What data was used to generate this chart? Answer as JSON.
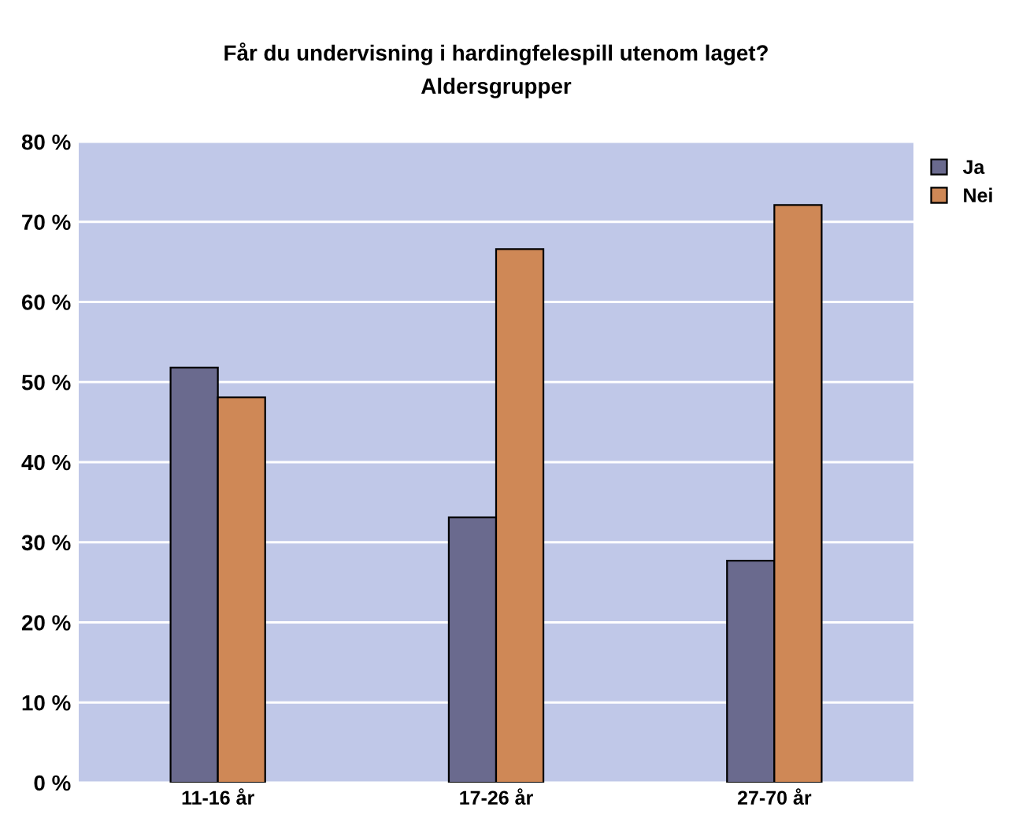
{
  "chart_data": {
    "type": "bar",
    "title": "Får du undervisning i hardingfelespill utenom laget?\nAldersgrupper",
    "categories": [
      "11-16 år",
      "17-26 år",
      "27-70 år"
    ],
    "series": [
      {
        "name": "Ja",
        "color": "#6a6a8e",
        "values": [
          51.8,
          33.1,
          27.7
        ]
      },
      {
        "name": "Nei",
        "color": "#cf8856",
        "values": [
          48.1,
          66.6,
          72.1
        ]
      }
    ],
    "ylim": [
      0,
      80
    ],
    "yticks": [
      {
        "value": 0,
        "label": "0 %"
      },
      {
        "value": 10,
        "label": "10 %"
      },
      {
        "value": 20,
        "label": "20 %"
      },
      {
        "value": 30,
        "label": "30 %"
      },
      {
        "value": 40,
        "label": "40 %"
      },
      {
        "value": 50,
        "label": "50 %"
      },
      {
        "value": 60,
        "label": "60 %"
      },
      {
        "value": 70,
        "label": "70 %"
      },
      {
        "value": 80,
        "label": "80 %"
      }
    ],
    "grid": "y",
    "legend": "top right"
  }
}
